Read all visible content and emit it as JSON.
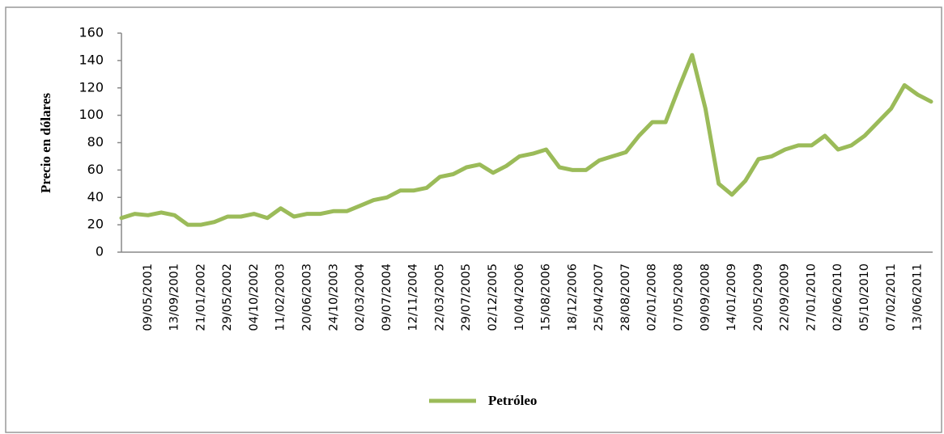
{
  "chart_data": {
    "type": "line",
    "y_label": "Precio en dólares",
    "categories": [
      null,
      null,
      "09/05/2001",
      null,
      "13/09/2001",
      null,
      "21/01/2002",
      null,
      "29/05/2002",
      null,
      "04/10/2002",
      null,
      "11/02/2003",
      null,
      "20/06/2003",
      null,
      "24/10/2003",
      null,
      "02/03/2004",
      null,
      "09/07/2004",
      null,
      "12/11/2004",
      null,
      "22/03/2005",
      null,
      "29/07/2005",
      null,
      "02/12/2005",
      null,
      "10/04/2006",
      null,
      "15/08/2006",
      null,
      "18/12/2006",
      null,
      "25/04/2007",
      null,
      "28/08/2007",
      null,
      "02/01/2008",
      null,
      "07/05/2008",
      null,
      "09/09/2008",
      null,
      "14/01/2009",
      null,
      "20/05/2009",
      null,
      "22/09/2009",
      null,
      "27/01/2010",
      null,
      "02/06/2010",
      null,
      "05/10/2010",
      null,
      "07/02/2011",
      null,
      "13/06/2011",
      null
    ],
    "series": [
      {
        "name": "Petróleo",
        "color": "#9bbb59",
        "values": [
          25,
          28,
          27,
          29,
          27,
          20,
          20,
          22,
          26,
          26,
          28,
          25,
          32,
          26,
          28,
          28,
          30,
          30,
          34,
          38,
          40,
          45,
          45,
          47,
          55,
          57,
          62,
          64,
          58,
          63,
          70,
          72,
          75,
          62,
          60,
          60,
          67,
          70,
          73,
          85,
          95,
          95,
          120,
          144,
          105,
          50,
          42,
          52,
          68,
          70,
          75,
          78,
          78,
          85,
          75,
          78,
          85,
          95,
          105,
          122,
          115,
          110
        ]
      }
    ],
    "ylim": [
      0,
      160
    ],
    "yticks": [
      0,
      20,
      40,
      60,
      80,
      100,
      120,
      140,
      160
    ],
    "legend": "bottom"
  }
}
